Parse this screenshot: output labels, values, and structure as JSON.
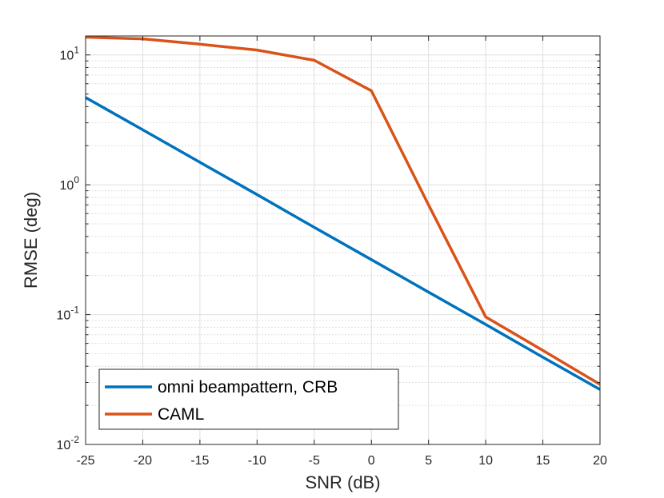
{
  "chart_data": {
    "type": "line",
    "title": "",
    "xlabel": "SNR (dB)",
    "ylabel": "RMSE (deg)",
    "xlim": [
      -25,
      20
    ],
    "ylim": [
      0.01,
      14
    ],
    "yscale": "log",
    "x_ticks": [
      -25,
      -20,
      -15,
      -10,
      -5,
      0,
      5,
      10,
      15,
      20
    ],
    "y_ticks": [
      {
        "value": 0.01,
        "base": "10",
        "exp": "-2"
      },
      {
        "value": 0.1,
        "base": "10",
        "exp": "-1"
      },
      {
        "value": 1,
        "base": "10",
        "exp": "0"
      },
      {
        "value": 10,
        "base": "10",
        "exp": "1"
      }
    ],
    "grid": true,
    "minor_grid": true,
    "legend_position": "bottom-left",
    "series": [
      {
        "name": "omni beampattern, CRB",
        "color": "#0072BD",
        "x": [
          -25,
          -20,
          -15,
          -10,
          -5,
          0,
          5,
          10,
          15,
          20
        ],
        "y": [
          4.7,
          2.65,
          1.49,
          0.84,
          0.47,
          0.265,
          0.149,
          0.084,
          0.047,
          0.0265
        ]
      },
      {
        "name": "CAML",
        "color": "#D95319",
        "x": [
          -25,
          -20,
          -15,
          -10,
          -5,
          0,
          5,
          10,
          15,
          20
        ],
        "y": [
          13.7,
          13.3,
          12.1,
          10.9,
          9.1,
          5.3,
          0.7,
          0.096,
          0.053,
          0.029
        ]
      }
    ]
  }
}
